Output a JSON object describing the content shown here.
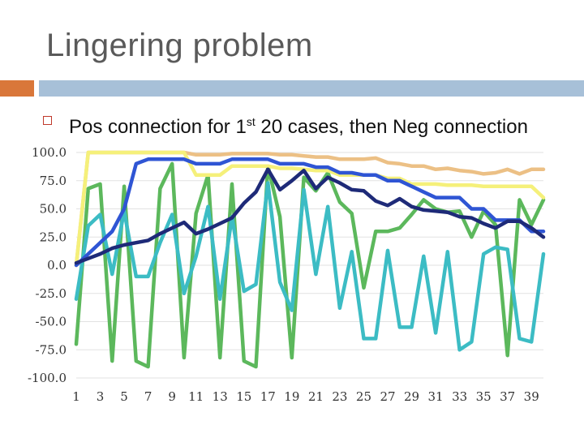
{
  "slide": {
    "title": "Lingering problem",
    "bullet": {
      "before_sup": "Pos connection for 1",
      "sup": "st",
      "after_sup": " 20 cases, then Neg connection"
    },
    "accent_color": "#d9773a",
    "bar_color": "#a7c0d8"
  },
  "chart_data": {
    "type": "line",
    "title": "",
    "xlabel": "",
    "ylabel": "",
    "ylim": [
      -100,
      100
    ],
    "yticks": [
      100,
      75,
      50,
      25,
      0,
      -25,
      -50,
      -75,
      -100
    ],
    "ytick_labels": [
      "100.0",
      "75.0",
      "50.0",
      "25.0",
      "0.0",
      "-25.0",
      "-50.0",
      "-75.0",
      "-100.0"
    ],
    "x": [
      1,
      2,
      3,
      4,
      5,
      6,
      7,
      8,
      9,
      10,
      11,
      12,
      13,
      14,
      15,
      16,
      17,
      18,
      19,
      20,
      21,
      22,
      23,
      24,
      25,
      26,
      27,
      28,
      29,
      30,
      31,
      32,
      33,
      34,
      35,
      36,
      37,
      38,
      39,
      40
    ],
    "xtick_labels": [
      "1",
      "3",
      "5",
      "7",
      "9",
      "11",
      "13",
      "15",
      "17",
      "19",
      "21",
      "23",
      "25",
      "27",
      "29",
      "31",
      "33",
      "35",
      "37",
      "39"
    ],
    "grid": true,
    "legend": "none",
    "series": [
      {
        "name": "green",
        "color": "#5cb85c",
        "values": [
          -70,
          68,
          72,
          -85,
          70,
          -85,
          -90,
          68,
          90,
          -82,
          46,
          80,
          -82,
          72,
          -85,
          -90,
          88,
          43,
          -82,
          78,
          66,
          82,
          56,
          46,
          -20,
          30,
          30,
          33,
          45,
          58,
          50,
          47,
          48,
          25,
          48,
          36,
          -80,
          58,
          36,
          58
        ]
      },
      {
        "name": "cyan",
        "color": "#3cbcc4",
        "values": [
          -30,
          35,
          45,
          -8,
          48,
          -10,
          -10,
          20,
          45,
          -25,
          8,
          52,
          -30,
          43,
          -23,
          -17,
          73,
          -15,
          -40,
          67,
          -8,
          52,
          -38,
          12,
          -65,
          -65,
          13,
          -55,
          -55,
          8,
          -60,
          12,
          -75,
          -68,
          10,
          16,
          14,
          -65,
          -68,
          10
        ]
      },
      {
        "name": "gold",
        "color": "#ecc085",
        "values": [
          0,
          100,
          100,
          100,
          100,
          100,
          100,
          100,
          100,
          100,
          98,
          98,
          98,
          99,
          99,
          99,
          99,
          98,
          98,
          97,
          96,
          96,
          94,
          94,
          94,
          95,
          91,
          90,
          88,
          88,
          85,
          86,
          84,
          83,
          81,
          82,
          85,
          81,
          85,
          85
        ]
      },
      {
        "name": "yellow",
        "color": "#f5f07a",
        "values": [
          0,
          100,
          100,
          100,
          100,
          100,
          100,
          100,
          100,
          100,
          80,
          80,
          80,
          88,
          88,
          88,
          88,
          86,
          86,
          85,
          84,
          84,
          80,
          80,
          80,
          80,
          77,
          77,
          72,
          72,
          72,
          71,
          71,
          71,
          70,
          70,
          70,
          70,
          70,
          60
        ]
      },
      {
        "name": "blue",
        "color": "#2f55d4",
        "values": [
          0,
          10,
          20,
          30,
          50,
          90,
          94,
          94,
          94,
          94,
          90,
          90,
          90,
          94,
          94,
          94,
          94,
          90,
          90,
          90,
          87,
          87,
          82,
          82,
          80,
          80,
          75,
          75,
          70,
          65,
          60,
          60,
          60,
          50,
          50,
          40,
          40,
          40,
          30,
          30
        ]
      },
      {
        "name": "navy",
        "color": "#1e2a78",
        "values": [
          2,
          6,
          10,
          15,
          18,
          20,
          22,
          28,
          33,
          38,
          28,
          32,
          37,
          42,
          55,
          65,
          85,
          67,
          75,
          84,
          68,
          78,
          73,
          67,
          66,
          57,
          53,
          59,
          52,
          49,
          48,
          47,
          43,
          42,
          37,
          33,
          39,
          39,
          33,
          25
        ]
      }
    ]
  }
}
